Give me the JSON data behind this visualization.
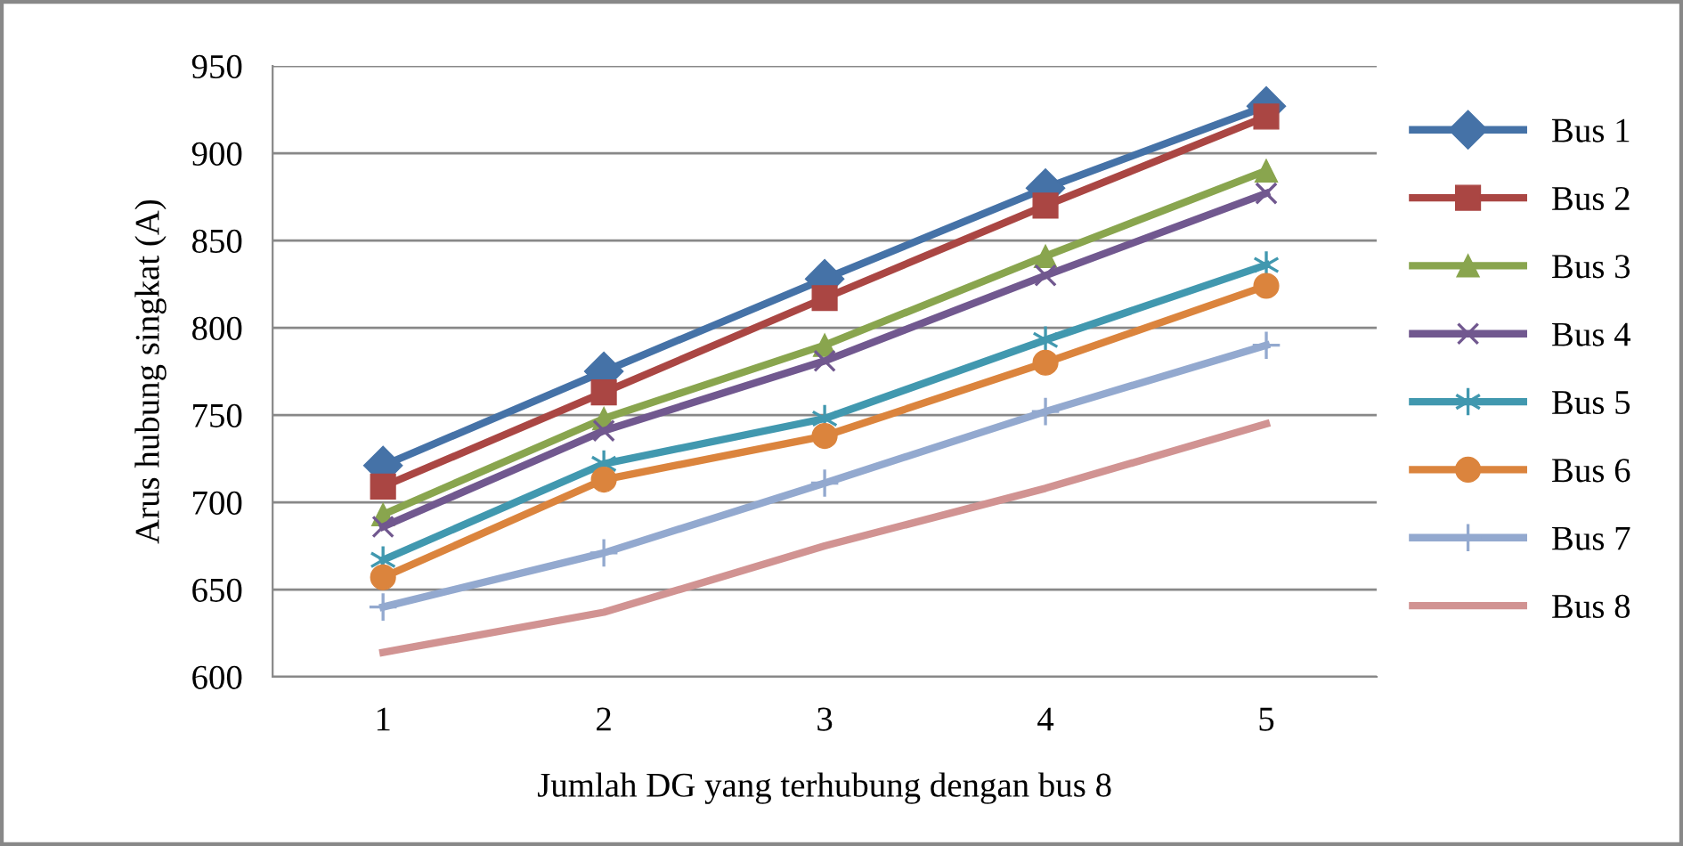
{
  "chart_data": {
    "type": "line",
    "xlabel": "Jumlah DG yang terhubung dengan bus 8",
    "ylabel": "Arus hubung singkat (A)",
    "categories": [
      "1",
      "2",
      "3",
      "4",
      "5"
    ],
    "ylim": [
      600,
      950
    ],
    "yticks": [
      600,
      650,
      700,
      750,
      800,
      850,
      900,
      950
    ],
    "grid": "y",
    "legend": "right",
    "series": [
      {
        "name": "Bus 1",
        "color": "#4572a7",
        "marker": "diamond",
        "values": [
          721,
          775,
          828,
          880,
          927
        ]
      },
      {
        "name": "Bus 2",
        "color": "#aa4643",
        "marker": "square",
        "values": [
          709,
          763,
          817,
          870,
          921
        ]
      },
      {
        "name": "Bus 3",
        "color": "#89a54e",
        "marker": "triangle",
        "values": [
          693,
          748,
          790,
          841,
          890
        ]
      },
      {
        "name": "Bus 4",
        "color": "#71588f",
        "marker": "x",
        "values": [
          686,
          741,
          781,
          830,
          877
        ]
      },
      {
        "name": "Bus 5",
        "color": "#4198af",
        "marker": "cross",
        "values": [
          667,
          722,
          748,
          793,
          836
        ]
      },
      {
        "name": "Bus 6",
        "color": "#db843d",
        "marker": "circle",
        "values": [
          657,
          713,
          738,
          780,
          824
        ]
      },
      {
        "name": "Bus 7",
        "color": "#93a9cf",
        "marker": "plus",
        "values": [
          640,
          671,
          711,
          752,
          790
        ]
      },
      {
        "name": "Bus 8",
        "color": "#d19392",
        "marker": "none",
        "values": [
          614,
          637,
          675,
          708,
          745
        ]
      }
    ]
  }
}
